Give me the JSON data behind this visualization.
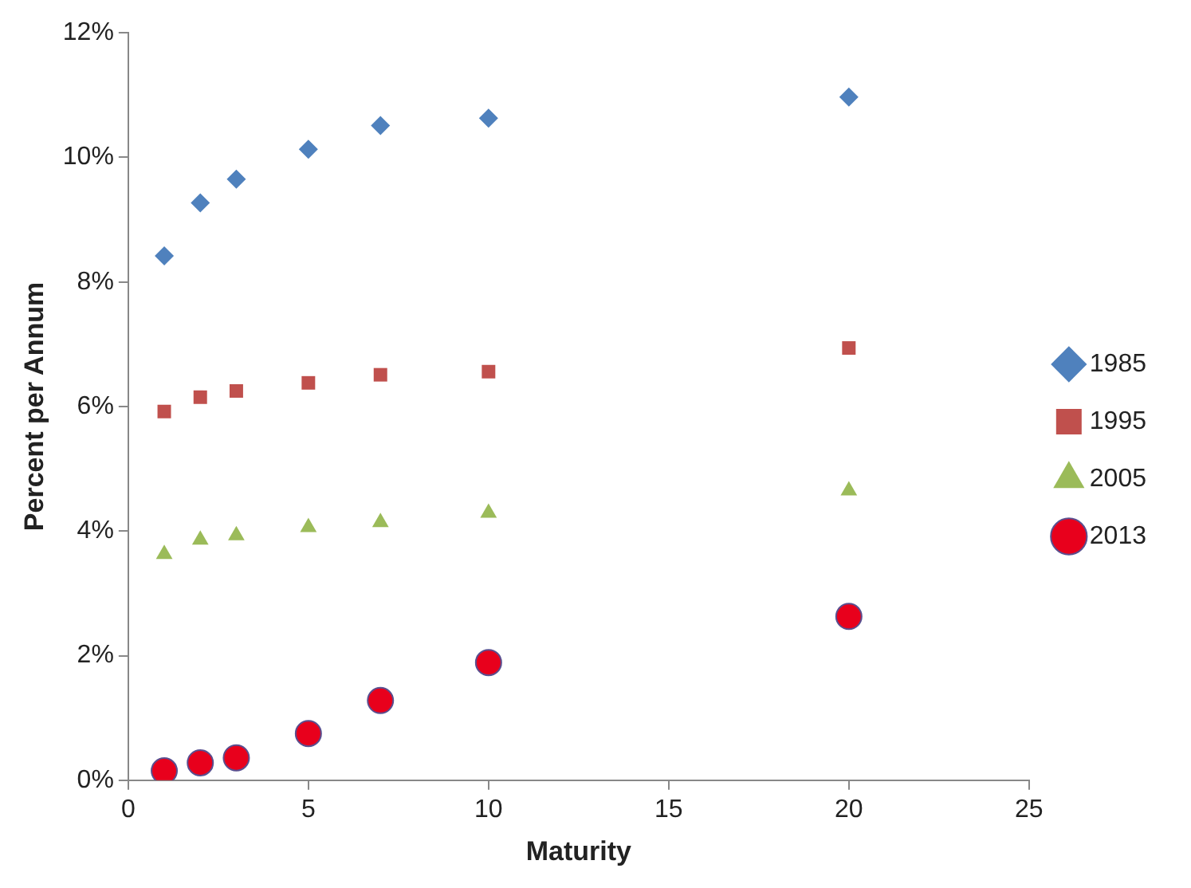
{
  "chart_data": {
    "type": "scatter",
    "xlabel": "Maturity",
    "ylabel": "Percent per Annum",
    "x": [
      1,
      2,
      3,
      5,
      7,
      10,
      20
    ],
    "series": [
      {
        "name": "1985",
        "color": "#4f81bd",
        "marker": "diamond",
        "values": [
          8.42,
          9.27,
          9.65,
          10.13,
          10.51,
          10.63,
          10.97
        ]
      },
      {
        "name": "1995",
        "color": "#c0504d",
        "marker": "square",
        "values": [
          5.92,
          6.15,
          6.25,
          6.38,
          6.51,
          6.56,
          6.94
        ]
      },
      {
        "name": "2005",
        "color": "#9bbb59",
        "marker": "triangle",
        "values": [
          3.63,
          3.86,
          3.93,
          4.06,
          4.14,
          4.29,
          4.65
        ]
      },
      {
        "name": "2013",
        "color": "#e8001c",
        "marker": "circle",
        "values": [
          0.15,
          0.28,
          0.36,
          0.75,
          1.28,
          1.89,
          2.63
        ]
      }
    ],
    "xlim": [
      0,
      25
    ],
    "xticks": [
      0,
      5,
      10,
      15,
      20,
      25
    ],
    "ylim": [
      0,
      12
    ],
    "yticks": [
      {
        "value": 0,
        "label": "0%"
      },
      {
        "value": 2,
        "label": "2%"
      },
      {
        "value": 4,
        "label": "4%"
      },
      {
        "value": 6,
        "label": "6%"
      },
      {
        "value": 8,
        "label": "8%"
      },
      {
        "value": 10,
        "label": "10%"
      },
      {
        "value": 12,
        "label": "12%"
      }
    ],
    "grid": false,
    "legend": "right"
  }
}
